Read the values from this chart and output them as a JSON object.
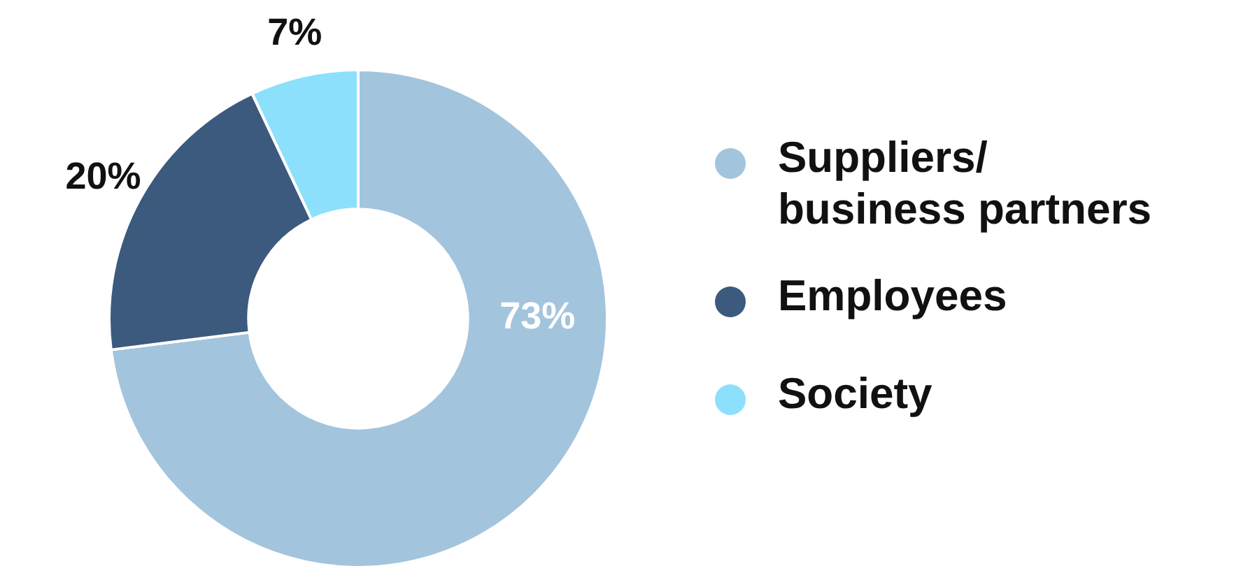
{
  "chart_data": {
    "type": "donut",
    "categories": [
      "Suppliers/ business partners",
      "Employees",
      "Society"
    ],
    "values": [
      73,
      20,
      7
    ],
    "colors": [
      "#a3c4dd",
      "#3b5a7e",
      "#8de0fb"
    ],
    "value_labels": [
      "73%",
      "20%",
      "7%"
    ],
    "legend": "right"
  }
}
